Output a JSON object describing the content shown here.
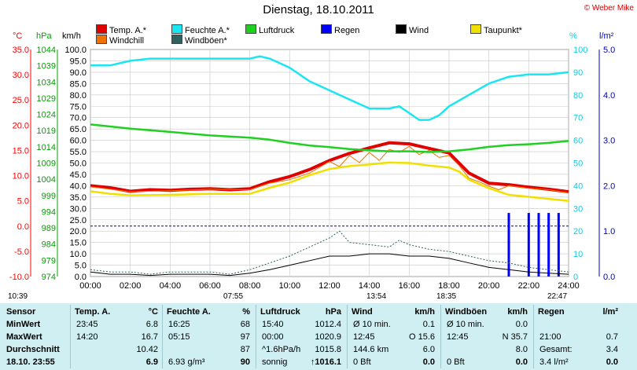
{
  "header": {
    "title": "Dienstag, 18.10.2011",
    "credit": "© Weber Mike",
    "unit_temp": "°C",
    "unit_hpa": "hPa",
    "unit_kmh": "km/h",
    "unit_pct": "%",
    "unit_rain": "l/m²"
  },
  "legend": [
    {
      "label": "Temp. A.*",
      "color": "#e00000"
    },
    {
      "label": "Feuchte A.*",
      "color": "#19e6f0"
    },
    {
      "label": "Luftdruck",
      "color": "#20d020"
    },
    {
      "label": "Regen",
      "color": "#0000ff"
    },
    {
      "label": "Wind",
      "color": "#000000"
    },
    {
      "label": "Taupunkt*",
      "color": "#f0e000"
    },
    {
      "label": "Windchill",
      "color": "#f07000"
    },
    {
      "label": "Windböen*",
      "color": "#306060"
    }
  ],
  "chart_data": {
    "type": "line",
    "x_ticks": [
      "00:00",
      "02:00",
      "04:00",
      "06:00",
      "08:00",
      "10:00",
      "12:00",
      "14:00",
      "16:00",
      "18:00",
      "20:00",
      "22:00",
      "24:00"
    ],
    "axes": {
      "temp": {
        "ticks": [
          "35.0",
          "30.0",
          "25.0",
          "20.0",
          "15.0",
          "10.0",
          "5.0",
          "0.0",
          "-5.0",
          "-10.0"
        ],
        "range": [
          -10,
          35
        ],
        "color": "#ff0000"
      },
      "pressure": {
        "ticks": [
          "1044",
          "1039",
          "1034",
          "1029",
          "1024",
          "1019",
          "1014",
          "1009",
          "1004",
          "999",
          "994",
          "989",
          "984",
          "979",
          "974"
        ],
        "range": [
          974,
          1044
        ],
        "color": "#00b000"
      },
      "wind": {
        "ticks": [
          "100.0",
          "95.0",
          "90.0",
          "85.0",
          "80.0",
          "75.0",
          "70.0",
          "65.0",
          "60.0",
          "55.0",
          "50.0",
          "45.0",
          "40.0",
          "35.0",
          "30.0",
          "25.0",
          "20.0",
          "15.0",
          "10.0",
          "5.0",
          "0.0"
        ],
        "range": [
          0,
          100
        ]
      },
      "humidity": {
        "ticks": [
          "100",
          "90",
          "80",
          "70",
          "60",
          "50",
          "40",
          "30",
          "20",
          "10",
          "0"
        ],
        "range": [
          0,
          100
        ],
        "color": "#19c8e0"
      },
      "rain": {
        "ticks": [
          "5.0",
          "4.0",
          "3.0",
          "2.0",
          "1.0",
          "0.0"
        ],
        "range": [
          0,
          5
        ],
        "color": "#0000c0"
      }
    },
    "series": [
      {
        "name": "Temp. A.*",
        "axis": "temp",
        "color": "#e00000",
        "points": [
          [
            0,
            8.0
          ],
          [
            1,
            7.6
          ],
          [
            2,
            6.9
          ],
          [
            3,
            7.2
          ],
          [
            4,
            7.1
          ],
          [
            5,
            7.3
          ],
          [
            6,
            7.4
          ],
          [
            7,
            7.2
          ],
          [
            8,
            7.4
          ],
          [
            9,
            8.8
          ],
          [
            10,
            9.8
          ],
          [
            11,
            11.2
          ],
          [
            12,
            13.0
          ],
          [
            13,
            14.4
          ],
          [
            14,
            15.5
          ],
          [
            15,
            16.5
          ],
          [
            16,
            16.3
          ],
          [
            17,
            15.4
          ],
          [
            18,
            14.5
          ],
          [
            18.5,
            12.5
          ],
          [
            19,
            10.5
          ],
          [
            20,
            8.5
          ],
          [
            21,
            8.2
          ],
          [
            22,
            7.7
          ],
          [
            23,
            7.3
          ],
          [
            24,
            6.8
          ]
        ]
      },
      {
        "name": "Windchill",
        "axis": "temp",
        "color": "#f07000",
        "points": [
          [
            0,
            7.8
          ],
          [
            2,
            6.8
          ],
          [
            4,
            7.0
          ],
          [
            6,
            7.3
          ],
          [
            8,
            7.2
          ],
          [
            9,
            8.5
          ],
          [
            10,
            9.2
          ],
          [
            11,
            10.5
          ],
          [
            12,
            12.8
          ],
          [
            12.5,
            11.8
          ],
          [
            13,
            14.0
          ],
          [
            13.5,
            12.6
          ],
          [
            14,
            14.6
          ],
          [
            14.5,
            13.0
          ],
          [
            15,
            15.2
          ],
          [
            15.5,
            14.6
          ],
          [
            16,
            15.8
          ],
          [
            16.5,
            14.2
          ],
          [
            17,
            15.0
          ],
          [
            17.5,
            13.6
          ],
          [
            18,
            14.0
          ],
          [
            18.5,
            12.0
          ],
          [
            19,
            9.5
          ],
          [
            19.5,
            8.8
          ],
          [
            20,
            7.9
          ],
          [
            20.5,
            7.2
          ],
          [
            21,
            8.0
          ],
          [
            22,
            7.5
          ],
          [
            23,
            7.2
          ],
          [
            24,
            6.6
          ]
        ]
      },
      {
        "name": "Taupunkt*",
        "axis": "temp",
        "color": "#f0e000",
        "points": [
          [
            0,
            6.9
          ],
          [
            1,
            6.4
          ],
          [
            2,
            6.1
          ],
          [
            4,
            6.2
          ],
          [
            6,
            6.4
          ],
          [
            8,
            6.4
          ],
          [
            9,
            7.6
          ],
          [
            10,
            8.6
          ],
          [
            11,
            10.1
          ],
          [
            12,
            11.3
          ],
          [
            13,
            11.9
          ],
          [
            14,
            12.2
          ],
          [
            15,
            12.6
          ],
          [
            16,
            12.5
          ],
          [
            17,
            12.0
          ],
          [
            18,
            11.6
          ],
          [
            18.5,
            10.8
          ],
          [
            19,
            9.2
          ],
          [
            20,
            7.5
          ],
          [
            21,
            6.2
          ],
          [
            22,
            5.8
          ],
          [
            23,
            5.4
          ],
          [
            24,
            5.0
          ]
        ]
      },
      {
        "name": "Feuchte A.*",
        "axis": "humidity",
        "color": "#19e6f0",
        "points": [
          [
            0,
            93
          ],
          [
            1,
            93
          ],
          [
            2,
            95
          ],
          [
            3,
            96
          ],
          [
            4,
            96
          ],
          [
            5,
            96
          ],
          [
            6,
            96
          ],
          [
            7,
            96
          ],
          [
            8,
            96
          ],
          [
            8.5,
            97
          ],
          [
            9,
            96
          ],
          [
            10,
            92
          ],
          [
            11,
            86
          ],
          [
            12,
            82
          ],
          [
            13,
            78
          ],
          [
            14,
            74
          ],
          [
            15,
            74
          ],
          [
            15.5,
            75
          ],
          [
            16,
            72
          ],
          [
            16.5,
            69
          ],
          [
            17,
            69
          ],
          [
            17.5,
            71
          ],
          [
            18,
            75
          ],
          [
            19,
            80
          ],
          [
            20,
            85
          ],
          [
            21,
            88
          ],
          [
            22,
            89
          ],
          [
            23,
            89
          ],
          [
            24,
            90
          ]
        ]
      },
      {
        "name": "Luftdruck",
        "axis": "pressure",
        "color": "#20d020",
        "points": [
          [
            0,
            1020.9
          ],
          [
            2,
            1019.6
          ],
          [
            4,
            1018.6
          ],
          [
            6,
            1017.5
          ],
          [
            8,
            1016.8
          ],
          [
            9,
            1016.2
          ],
          [
            10,
            1015.2
          ],
          [
            11,
            1014.4
          ],
          [
            12,
            1013.9
          ],
          [
            13,
            1013.3
          ],
          [
            14,
            1012.9
          ],
          [
            15,
            1012.6
          ],
          [
            16,
            1012.6
          ],
          [
            17,
            1012.4
          ],
          [
            18,
            1012.6
          ],
          [
            19,
            1013.2
          ],
          [
            20,
            1014.0
          ],
          [
            21,
            1014.5
          ],
          [
            22,
            1014.8
          ],
          [
            23,
            1015.2
          ],
          [
            24,
            1015.8
          ]
        ]
      },
      {
        "name": "Windböen*",
        "axis": "wind",
        "color": "#306060",
        "points": [
          [
            0,
            3
          ],
          [
            1,
            2
          ],
          [
            2,
            2
          ],
          [
            3,
            1
          ],
          [
            4,
            2
          ],
          [
            5,
            2
          ],
          [
            6,
            2
          ],
          [
            7,
            1
          ],
          [
            8,
            3
          ],
          [
            9,
            6
          ],
          [
            10,
            9
          ],
          [
            11,
            13
          ],
          [
            12,
            17
          ],
          [
            12.5,
            20
          ],
          [
            13,
            15
          ],
          [
            14,
            14
          ],
          [
            15,
            13
          ],
          [
            15.5,
            16
          ],
          [
            16,
            14
          ],
          [
            17,
            12
          ],
          [
            18,
            11
          ],
          [
            19,
            9
          ],
          [
            20,
            7
          ],
          [
            21,
            6
          ],
          [
            22,
            4
          ],
          [
            23,
            3
          ],
          [
            24,
            2
          ]
        ]
      },
      {
        "name": "Wind",
        "axis": "wind",
        "color": "#000000",
        "points": [
          [
            0,
            2
          ],
          [
            1,
            1
          ],
          [
            2,
            1
          ],
          [
            3,
            0.5
          ],
          [
            4,
            1
          ],
          [
            5,
            1
          ],
          [
            6,
            1
          ],
          [
            7,
            0.5
          ],
          [
            8,
            1.5
          ],
          [
            9,
            3
          ],
          [
            10,
            5
          ],
          [
            11,
            7
          ],
          [
            12,
            9
          ],
          [
            13,
            9
          ],
          [
            14,
            10
          ],
          [
            15,
            10
          ],
          [
            16,
            9
          ],
          [
            17,
            9
          ],
          [
            18,
            8
          ],
          [
            19,
            6
          ],
          [
            20,
            4
          ],
          [
            21,
            3
          ],
          [
            22,
            2
          ],
          [
            23,
            1.5
          ],
          [
            24,
            1
          ]
        ]
      }
    ],
    "rain_bars": [
      [
        21,
        1.4
      ],
      [
        22,
        1.4
      ],
      [
        22.5,
        1.4
      ],
      [
        23,
        1.4
      ],
      [
        23.5,
        1.4
      ]
    ],
    "reference_line": {
      "axis": "temp",
      "value": 0,
      "color": "#0000c0"
    }
  },
  "sun": {
    "day_start": "10:39",
    "sunrise": "07:55",
    "moonrise": "13:54",
    "sunset": "18:35",
    "moonset": "22:47"
  },
  "table": {
    "sensor": {
      "header": "Sensor",
      "rows": [
        "MinWert",
        "MaxWert",
        "Durchschnitt",
        "18.10.  23:55"
      ]
    },
    "temp": {
      "header": "Temp. A.",
      "unit": "°C",
      "rows": [
        [
          "23:45",
          "6.8"
        ],
        [
          "14:20",
          "16.7"
        ],
        [
          "",
          "10.42"
        ],
        [
          "",
          "6.9"
        ]
      ]
    },
    "humidity": {
      "header": "Feuchte A.",
      "unit": "%",
      "rows": [
        [
          "16:25",
          "68"
        ],
        [
          "05:15",
          "97"
        ],
        [
          "",
          "87"
        ],
        [
          "6.93 g/m³",
          "90"
        ]
      ]
    },
    "pressure": {
      "header": "Luftdruck",
      "unit": "hPa",
      "rows": [
        [
          "15:40",
          "1012.4"
        ],
        [
          "00:00",
          "1020.9"
        ],
        [
          "^1.6hPa/h",
          "1015.8"
        ],
        [
          "sonnig",
          "↑1016.1"
        ]
      ]
    },
    "wind": {
      "header": "Wind",
      "unit": "km/h",
      "rows": [
        [
          "Ø 10 min.",
          "0.1"
        ],
        [
          "12:45",
          "O 15.6"
        ],
        [
          "144.6 km",
          "6.0"
        ],
        [
          "0 Bft",
          "0.0"
        ]
      ]
    },
    "gust": {
      "header": "Windböen",
      "unit": "km/h",
      "rows": [
        [
          "Ø 10 min.",
          "0.0"
        ],
        [
          "12:45",
          "N 35.7"
        ],
        [
          "",
          "8.0"
        ],
        [
          "0 Bft",
          "0.0"
        ]
      ]
    },
    "rain": {
      "header": "Regen",
      "unit": "l/m²",
      "rows": [
        [
          "",
          ""
        ],
        [
          "21:00",
          "0.7"
        ],
        [
          "Gesamt:",
          "3.4"
        ],
        [
          "3.4 l/m²",
          "0.0"
        ]
      ]
    }
  }
}
